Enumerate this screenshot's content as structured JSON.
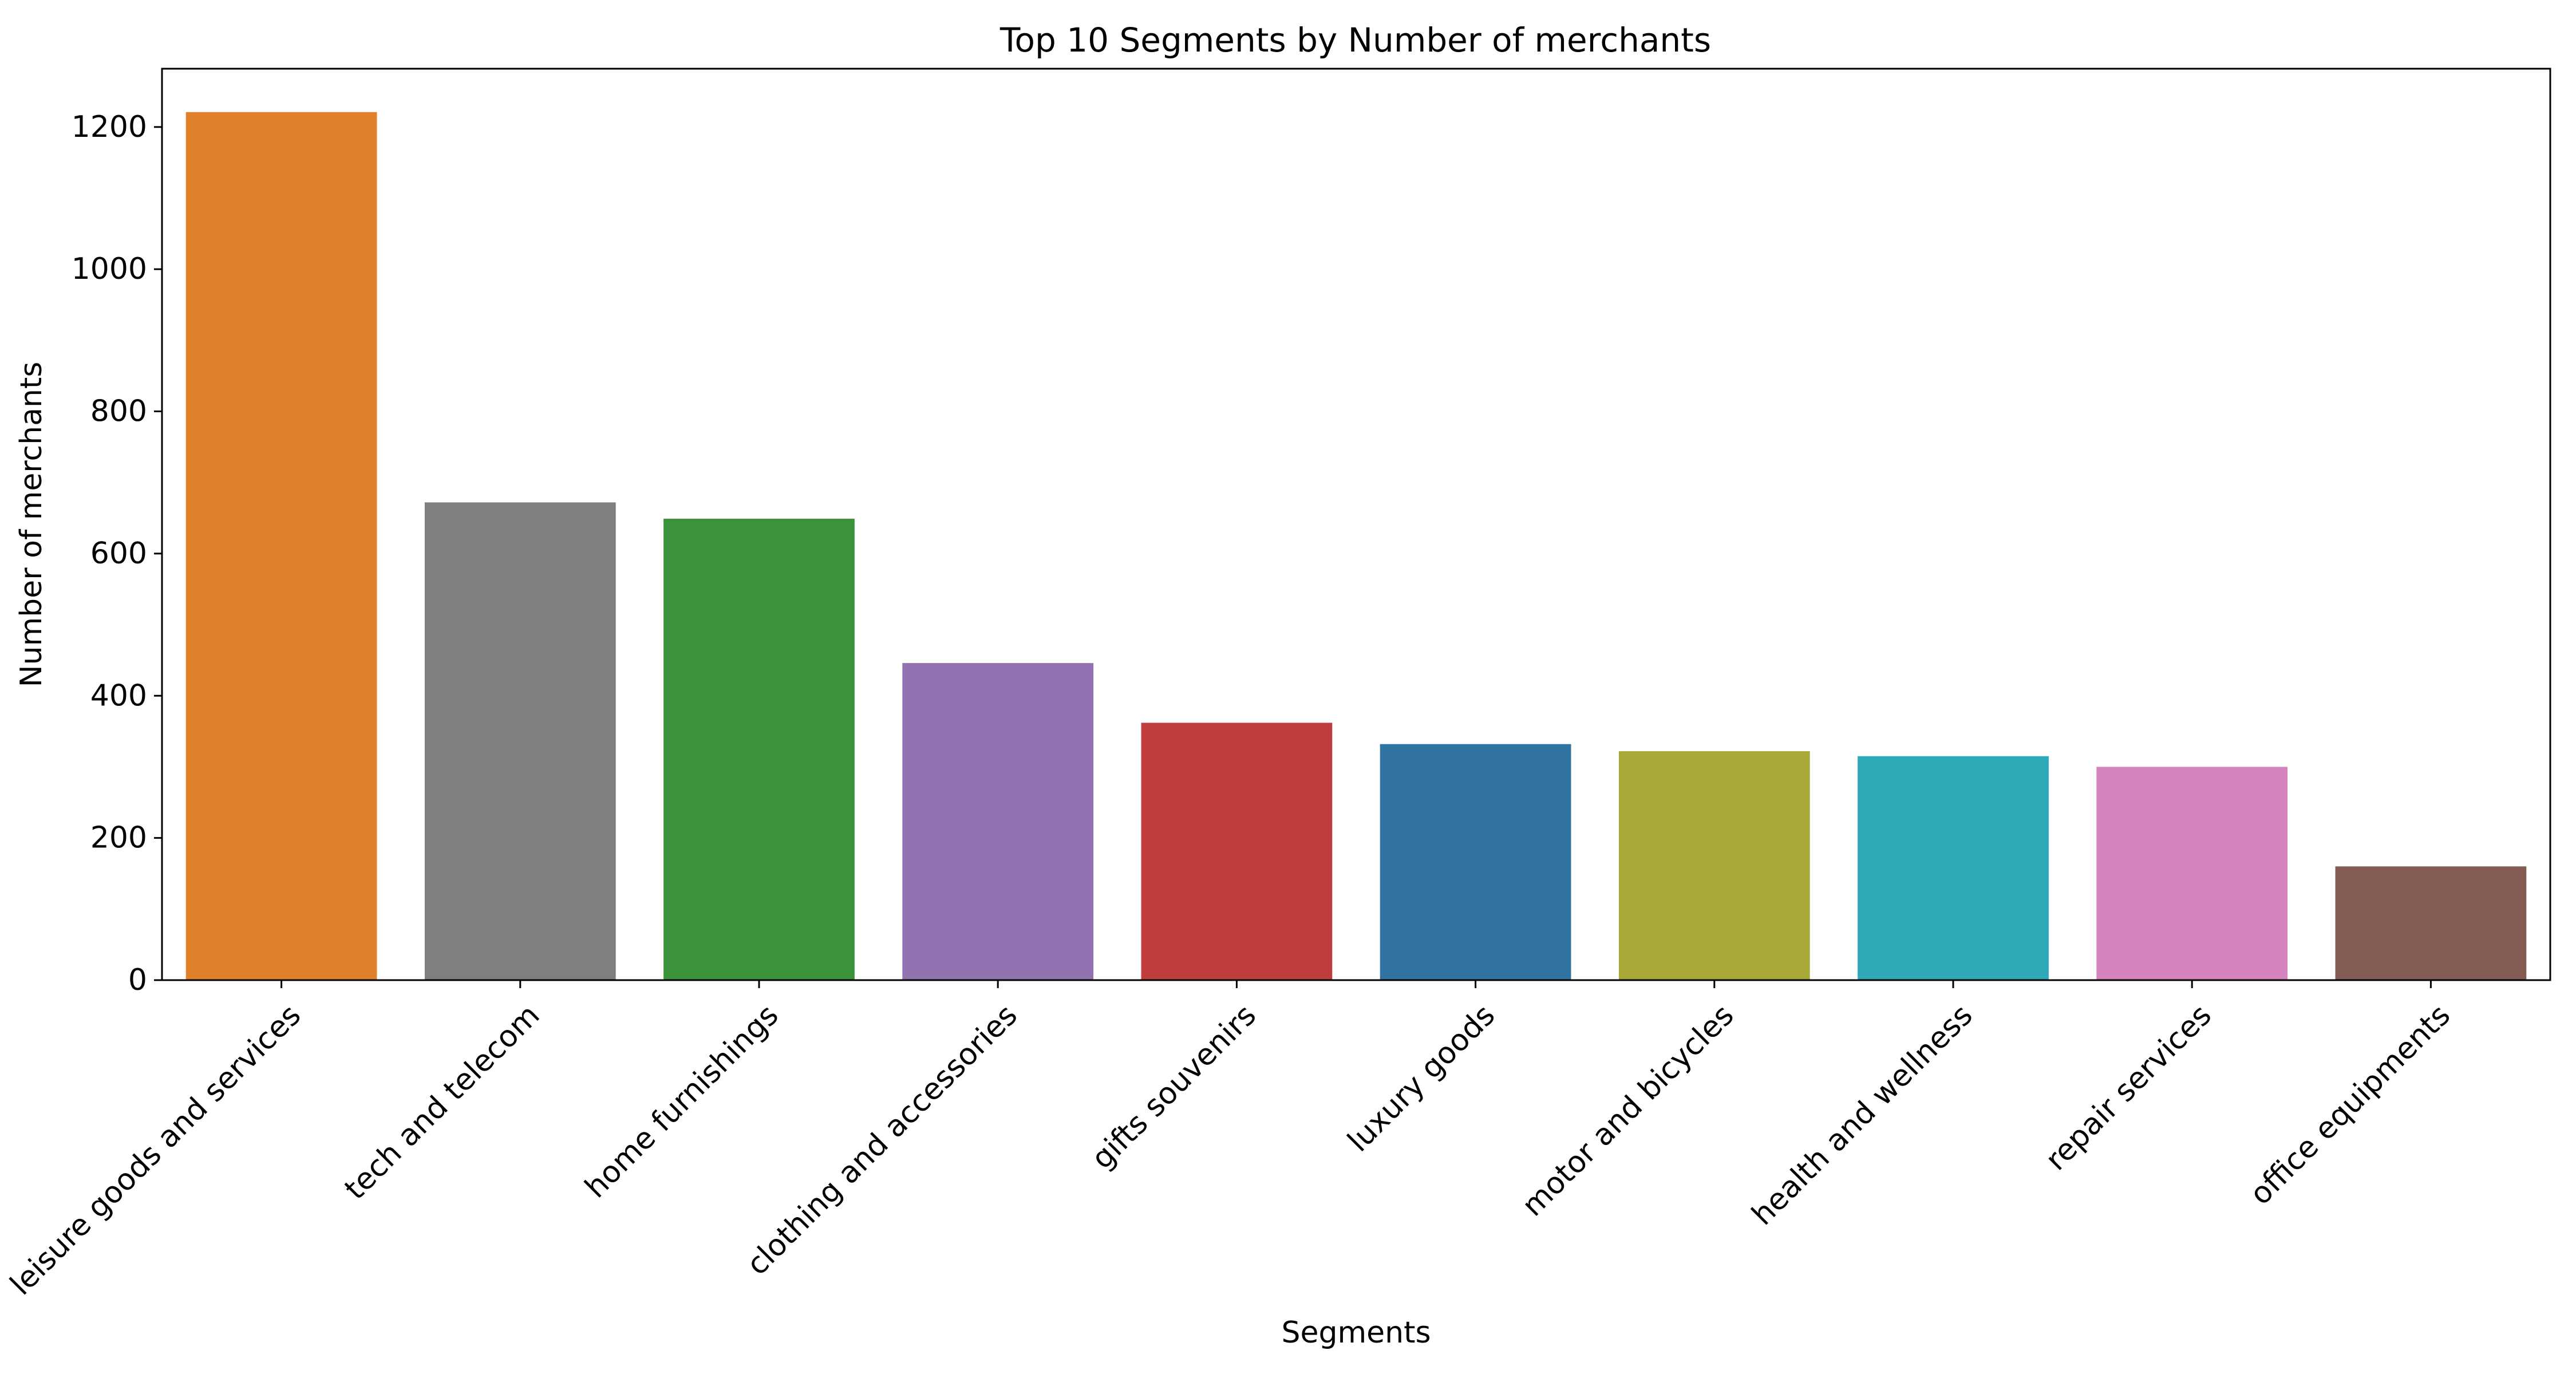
{
  "chart_data": {
    "type": "bar",
    "title": "Top 10 Segments by Number of merchants",
    "xlabel": "Segments",
    "ylabel": "Number of merchants",
    "categories": [
      "leisure goods and services",
      "tech and telecom",
      "home furnishings",
      "clothing and accessories",
      "gifts souvenirs",
      "luxury goods",
      "motor and bicycles",
      "health and wellness",
      "repair services",
      "office equipments"
    ],
    "values": [
      1221,
      672,
      649,
      446,
      362,
      332,
      322,
      315,
      300,
      160
    ],
    "colors": [
      "#e1812c",
      "#7f7f7f",
      "#3a923a",
      "#9372b2",
      "#c03d3e",
      "#3274a1",
      "#a9a93a",
      "#2eaab8",
      "#d684bd",
      "#845b53"
    ],
    "yticks": [
      0,
      200,
      400,
      600,
      800,
      1000,
      1200
    ],
    "ylim": [
      0,
      1282
    ],
    "grid": false,
    "legend": "none"
  }
}
